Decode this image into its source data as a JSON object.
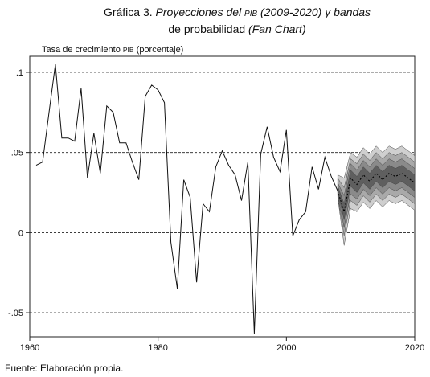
{
  "title": {
    "prefix": "Gráfica 3. ",
    "part1": "Proyecciones del ",
    "pib": "PIB",
    "part2": " (2009-2020) y bandas",
    "line2a": "de probabilidad ",
    "line2b": "(Fan Chart)"
  },
  "source": "Fuente: Elaboración propia.",
  "chart_data": {
    "type": "line",
    "title": "Proyecciones del PIB (2009-2020) y bandas de probabilidad (Fan Chart)",
    "ylabel_prefix": "Tasa de crecimiento ",
    "ylabel_pib": "PIB",
    "ylabel_suffix": " (porcentaje)",
    "xlabel": "",
    "xlim": [
      1960,
      2020
    ],
    "ylim": [
      -0.065,
      0.11
    ],
    "x_ticks": [
      1960,
      1980,
      2000,
      2020
    ],
    "y_ticks": [
      0.1,
      0.05,
      0,
      -0.05
    ],
    "y_tick_labels": [
      ".1",
      ".05",
      "0",
      "-.05"
    ],
    "grid": "dashed horizontal lines at y ticks",
    "series": [
      {
        "x": [
          1961,
          1962,
          1963,
          1964,
          1965,
          1966,
          1967,
          1968,
          1969,
          1970,
          1971,
          1972,
          1973,
          1974,
          1975,
          1976,
          1977,
          1978,
          1979,
          1980,
          1981,
          1982,
          1983,
          1984,
          1985,
          1986,
          1987,
          1988,
          1989,
          1990,
          1991,
          1992,
          1993,
          1994,
          1995,
          1996,
          1997,
          1998,
          1999,
          2000,
          2001,
          2002,
          2003,
          2004,
          2005,
          2006,
          2007,
          2008
        ],
        "values": [
          0.042,
          0.044,
          0.075,
          0.105,
          0.059,
          0.059,
          0.057,
          0.09,
          0.034,
          0.062,
          0.037,
          0.079,
          0.075,
          0.056,
          0.056,
          0.044,
          0.033,
          0.085,
          0.092,
          0.089,
          0.081,
          -0.006,
          -0.035,
          0.033,
          0.022,
          -0.031,
          0.018,
          0.013,
          0.041,
          0.051,
          0.042,
          0.036,
          0.02,
          0.044,
          -0.063,
          0.049,
          0.066,
          0.047,
          0.038,
          0.064,
          -0.002,
          0.008,
          0.013,
          0.041,
          0.027,
          0.047,
          0.035,
          0.026
        ]
      },
      {
        "x": [
          2008,
          2009,
          2010,
          2011,
          2012,
          2013,
          2014,
          2015,
          2016,
          2017,
          2018,
          2019,
          2020
        ],
        "values": [
          0.026,
          0.013,
          0.034,
          0.03,
          0.036,
          0.032,
          0.037,
          0.033,
          0.037,
          0.035,
          0.037,
          0.034,
          0.031
        ]
      }
    ],
    "fan_bands": {
      "x": [
        2008,
        2009,
        2010,
        2011,
        2012,
        2013,
        2014,
        2015,
        2016,
        2017,
        2018,
        2019,
        2020
      ],
      "bands": [
        {
          "color": "#cfcfcf",
          "lower": [
            0.022,
            -0.008,
            0.015,
            0.013,
            0.019,
            0.015,
            0.02,
            0.016,
            0.02,
            0.018,
            0.02,
            0.017,
            0.014
          ],
          "upper": [
            0.036,
            0.034,
            0.05,
            0.047,
            0.053,
            0.049,
            0.054,
            0.05,
            0.054,
            0.052,
            0.054,
            0.051,
            0.048
          ]
        },
        {
          "color": "#a9a9a9",
          "lower": [
            0.023,
            -0.002,
            0.02,
            0.017,
            0.023,
            0.019,
            0.024,
            0.02,
            0.024,
            0.022,
            0.024,
            0.021,
            0.018
          ],
          "upper": [
            0.034,
            0.028,
            0.046,
            0.043,
            0.049,
            0.045,
            0.05,
            0.046,
            0.05,
            0.048,
            0.05,
            0.047,
            0.044
          ]
        },
        {
          "color": "#8a8a8a",
          "lower": [
            0.024,
            0.003,
            0.024,
            0.021,
            0.027,
            0.023,
            0.028,
            0.024,
            0.028,
            0.026,
            0.028,
            0.025,
            0.022
          ],
          "upper": [
            0.031,
            0.023,
            0.043,
            0.039,
            0.045,
            0.041,
            0.046,
            0.042,
            0.046,
            0.044,
            0.046,
            0.043,
            0.04
          ]
        },
        {
          "color": "#5f5f5f",
          "lower": [
            0.025,
            0.008,
            0.029,
            0.025,
            0.031,
            0.027,
            0.032,
            0.028,
            0.032,
            0.03,
            0.032,
            0.029,
            0.026
          ],
          "upper": [
            0.029,
            0.018,
            0.039,
            0.035,
            0.041,
            0.037,
            0.042,
            0.038,
            0.042,
            0.04,
            0.042,
            0.039,
            0.036
          ]
        }
      ]
    }
  }
}
